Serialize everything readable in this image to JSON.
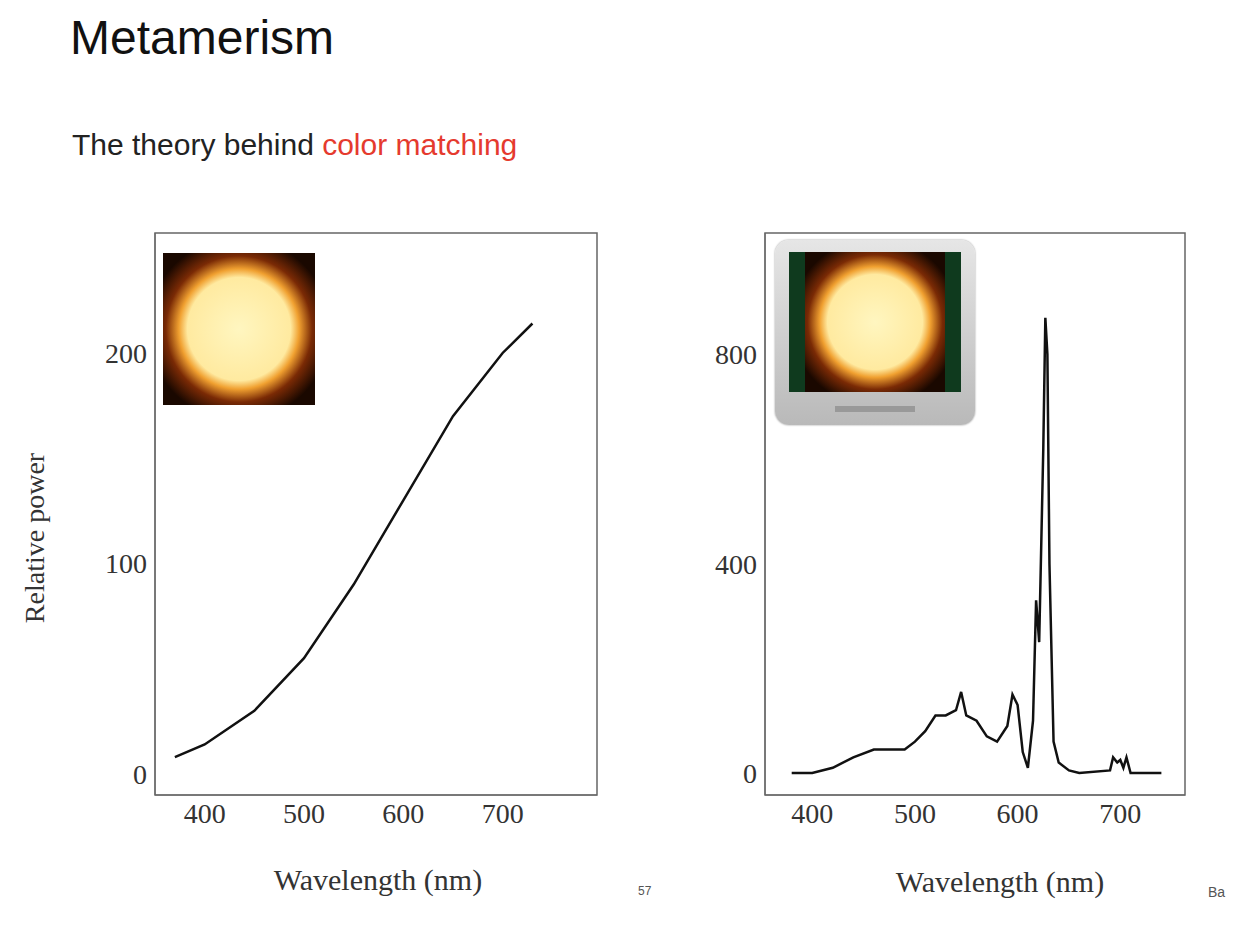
{
  "title": "Metamerism",
  "subtitle": {
    "text": "The theory behind",
    "highlight": "color matching",
    "highlight_color": "#e53a2e"
  },
  "page_number": "57",
  "credit": "Ba",
  "chart_data": [
    {
      "type": "line",
      "x_label": "Wavelength (nm)",
      "y_label": "Relative power",
      "color": "#111111",
      "grid": false,
      "x": [
        370,
        400,
        450,
        500,
        550,
        600,
        650,
        700,
        730
      ],
      "values": [
        8,
        14,
        30,
        55,
        90,
        130,
        170,
        200,
        214
      ],
      "xlim": [
        350,
        795
      ],
      "ylim": [
        -10,
        257
      ],
      "xticks": [
        400,
        500,
        600,
        700
      ],
      "yticks": [
        0,
        100,
        200
      ]
    },
    {
      "type": "line",
      "x_label": "Wavelength (nm)",
      "color": "#111111",
      "grid": false,
      "x": [
        380,
        400,
        420,
        440,
        460,
        480,
        490,
        500,
        510,
        520,
        530,
        540,
        545,
        550,
        560,
        570,
        580,
        590,
        595,
        600,
        605,
        610,
        615,
        618,
        621,
        625,
        627,
        629,
        631,
        635,
        640,
        650,
        660,
        690,
        693,
        697,
        700,
        703,
        706,
        710,
        740
      ],
      "values": [
        0,
        0,
        10,
        30,
        45,
        45,
        45,
        60,
        80,
        110,
        110,
        120,
        155,
        110,
        100,
        70,
        60,
        90,
        150,
        130,
        40,
        10,
        100,
        330,
        250,
        620,
        870,
        800,
        400,
        60,
        20,
        5,
        0,
        5,
        30,
        20,
        25,
        10,
        30,
        0,
        0
      ],
      "xlim": [
        354,
        763
      ],
      "ylim": [
        -42,
        1032
      ],
      "xticks": [
        400,
        500,
        600,
        700
      ],
      "yticks": [
        0,
        400,
        800
      ]
    }
  ]
}
